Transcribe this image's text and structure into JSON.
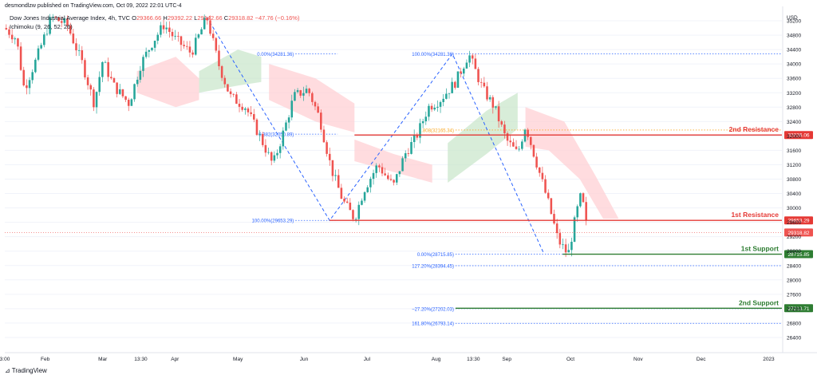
{
  "header": {
    "published": "desmondlzw published on TradingView.com, Oct 09, 2022 22:01 UTC-4"
  },
  "legend": {
    "symbol": "Dow Jones Industrial Average Index, 4h, TVC",
    "o_label": "O",
    "o": "29366.66",
    "h_label": "H",
    "h": "29392.22",
    "l_label": "L",
    "l": "29142.66",
    "c_label": "C",
    "c": "29318.82",
    "change": "−47.76 (−0.16%)",
    "indicator": "Ichimoku (9, 26, 52, 26)"
  },
  "footer": {
    "brand": "TradingView"
  },
  "colors": {
    "up": "#26a69a",
    "down": "#ef5350",
    "resistance": "#e53935",
    "support": "#2e7d32",
    "fib": "#2962ff",
    "cloud_green": "#c8e6c9",
    "cloud_red": "#ffcdd2",
    "fib_orange": "#f9a825"
  },
  "chart_data": {
    "type": "candlestick",
    "currency": "USD",
    "ylim": [
      26200,
      35600
    ],
    "y_ticks": [
      35200,
      34800,
      34400,
      34000,
      33600,
      33200,
      32800,
      32400,
      32000,
      31600,
      31200,
      30800,
      30400,
      30000,
      29600,
      29200,
      28800,
      28400,
      28000,
      27600,
      27200,
      26800,
      26400
    ],
    "x_ticks": [
      {
        "label": "3:00",
        "pos": 0.0
      },
      {
        "label": "Feb",
        "pos": 0.052
      },
      {
        "label": "Mar",
        "pos": 0.126
      },
      {
        "label": "13:30",
        "pos": 0.175
      },
      {
        "label": "Apr",
        "pos": 0.219
      },
      {
        "label": "May",
        "pos": 0.3
      },
      {
        "label": "Jun",
        "pos": 0.385
      },
      {
        "label": "Jul",
        "pos": 0.466
      },
      {
        "label": "Aug",
        "pos": 0.555
      },
      {
        "label": "13:30",
        "pos": 0.603
      },
      {
        "label": "Sep",
        "pos": 0.646
      },
      {
        "label": "Oct",
        "pos": 0.728
      },
      {
        "label": "Nov",
        "pos": 0.815
      },
      {
        "label": "Dec",
        "pos": 0.896
      },
      {
        "label": "2023",
        "pos": 0.983
      }
    ],
    "price_path": [
      [
        0.0,
        35000
      ],
      [
        0.015,
        34700
      ],
      [
        0.025,
        33300
      ],
      [
        0.04,
        34100
      ],
      [
        0.06,
        35300
      ],
      [
        0.08,
        35100
      ],
      [
        0.1,
        34000
      ],
      [
        0.115,
        32900
      ],
      [
        0.126,
        34100
      ],
      [
        0.14,
        33400
      ],
      [
        0.16,
        32900
      ],
      [
        0.175,
        34000
      ],
      [
        0.19,
        34600
      ],
      [
        0.205,
        35100
      ],
      [
        0.219,
        34700
      ],
      [
        0.24,
        34300
      ],
      [
        0.26,
        35300
      ],
      [
        0.275,
        34000
      ],
      [
        0.29,
        33100
      ],
      [
        0.31,
        32800
      ],
      [
        0.33,
        31900
      ],
      [
        0.345,
        31200
      ],
      [
        0.36,
        32200
      ],
      [
        0.372,
        33100
      ],
      [
        0.39,
        33300
      ],
      [
        0.405,
        32500
      ],
      [
        0.42,
        31100
      ],
      [
        0.435,
        30200
      ],
      [
        0.45,
        29700
      ],
      [
        0.462,
        30500
      ],
      [
        0.48,
        31200
      ],
      [
        0.5,
        30600
      ],
      [
        0.515,
        31500
      ],
      [
        0.53,
        32000
      ],
      [
        0.545,
        32800
      ],
      [
        0.56,
        33000
      ],
      [
        0.58,
        33500
      ],
      [
        0.597,
        34280
      ],
      [
        0.615,
        33300
      ],
      [
        0.63,
        32800
      ],
      [
        0.645,
        31900
      ],
      [
        0.66,
        31500
      ],
      [
        0.67,
        32300
      ],
      [
        0.685,
        31200
      ],
      [
        0.7,
        30100
      ],
      [
        0.712,
        29100
      ],
      [
        0.725,
        28700
      ],
      [
        0.735,
        29800
      ],
      [
        0.742,
        30400
      ],
      [
        0.75,
        29300
      ]
    ],
    "cloud_segments": [
      {
        "color": "red",
        "pts": [
          [
            0.17,
            33800
          ],
          [
            0.22,
            34200
          ],
          [
            0.25,
            33600
          ],
          [
            0.25,
            33000
          ],
          [
            0.22,
            32800
          ],
          [
            0.17,
            33200
          ]
        ]
      },
      {
        "color": "green",
        "pts": [
          [
            0.25,
            33800
          ],
          [
            0.3,
            34400
          ],
          [
            0.33,
            34200
          ],
          [
            0.33,
            33500
          ],
          [
            0.3,
            33400
          ],
          [
            0.25,
            33200
          ]
        ]
      },
      {
        "color": "red",
        "pts": [
          [
            0.34,
            34000
          ],
          [
            0.4,
            33600
          ],
          [
            0.45,
            32900
          ],
          [
            0.45,
            32100
          ],
          [
            0.4,
            32400
          ],
          [
            0.34,
            33000
          ]
        ]
      },
      {
        "color": "red",
        "pts": [
          [
            0.45,
            31900
          ],
          [
            0.5,
            31500
          ],
          [
            0.55,
            31200
          ],
          [
            0.55,
            30700
          ],
          [
            0.5,
            31000
          ],
          [
            0.45,
            31300
          ]
        ]
      },
      {
        "color": "green",
        "pts": [
          [
            0.57,
            31800
          ],
          [
            0.62,
            32700
          ],
          [
            0.66,
            33200
          ],
          [
            0.66,
            32200
          ],
          [
            0.62,
            31500
          ],
          [
            0.57,
            30700
          ]
        ]
      },
      {
        "color": "red",
        "pts": [
          [
            0.67,
            32800
          ],
          [
            0.72,
            32400
          ],
          [
            0.76,
            30900
          ],
          [
            0.79,
            29700
          ],
          [
            0.77,
            29700
          ],
          [
            0.74,
            30800
          ],
          [
            0.7,
            31600
          ],
          [
            0.67,
            31700
          ]
        ]
      }
    ],
    "fib_top": [
      {
        "label": "0.00%(34281.36)",
        "price": 34281.36
      },
      {
        "label": "0.382(32050.89)",
        "price": 32050.89
      },
      {
        "label": "100.00%(29653.29)",
        "price": 29653.29
      }
    ],
    "fib_bottom": [
      {
        "label": "100.00%(34281.36)",
        "price": 34281.36
      },
      {
        "label": "1.808(32165.34)",
        "price": 32165.34
      },
      {
        "label": "0.00%(28715.85)",
        "price": 28715.85
      },
      {
        "label": "127.20%(28394.45)",
        "price": 28394.45
      },
      {
        "label": "−27.20%(27202.03)",
        "price": 27202.03
      },
      {
        "label": "161.80%(26793.14)",
        "price": 26793.14
      }
    ],
    "levels": [
      {
        "name": "2nd Resistance",
        "price": 32026.06,
        "price_label": "32026.06",
        "type": "resistance"
      },
      {
        "name": "1st Resistance",
        "price": 29653.29,
        "price_label": "29653.29",
        "type": "resistance"
      },
      {
        "name": "1st Support",
        "price": 28715.85,
        "price_label": "28715.85",
        "type": "support"
      },
      {
        "name": "2nd Support",
        "price": 27213.71,
        "price_label": "27213.71",
        "type": "support"
      }
    ],
    "last_price": {
      "price": 29318.82,
      "label": "29318.82"
    }
  }
}
